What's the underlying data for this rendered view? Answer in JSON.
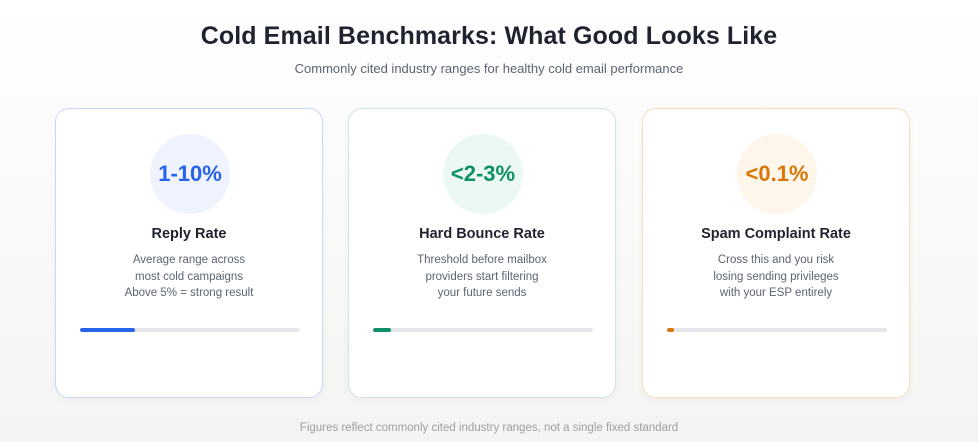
{
  "header": {
    "title": "Cold Email Benchmarks: What Good Looks Like",
    "subtitle": "Commonly cited industry ranges for healthy cold email performance"
  },
  "cards": [
    {
      "value": "1-10%",
      "label": "Reply Rate",
      "description_lines": [
        "Average range across",
        "most cold campaigns",
        "Above 5% = strong result"
      ],
      "progress_fraction": 0.25,
      "accent_color": "#2563eb",
      "circle_color": "#eef3fe",
      "border_color": "#c9d8f7"
    },
    {
      "value": "<2-3%",
      "label": "Hard Bounce Rate",
      "description_lines": [
        "Threshold before mailbox",
        "providers start filtering",
        "your future sends"
      ],
      "progress_fraction": 0.08,
      "accent_color": "#0e8f67",
      "circle_color": "#ecf8f2",
      "border_color": "#cfe6da"
    },
    {
      "value": "<0.1%",
      "label": "Spam Complaint Rate",
      "description_lines": [
        "Cross this and you risk",
        "losing sending privileges",
        "with your ESP entirely"
      ],
      "progress_fraction": 0.03,
      "accent_color": "#d97706",
      "circle_color": "#fef6ea",
      "border_color": "#f6dcbb"
    }
  ],
  "footer": {
    "note": "Figures reflect commonly cited industry ranges, not a single fixed standard"
  }
}
